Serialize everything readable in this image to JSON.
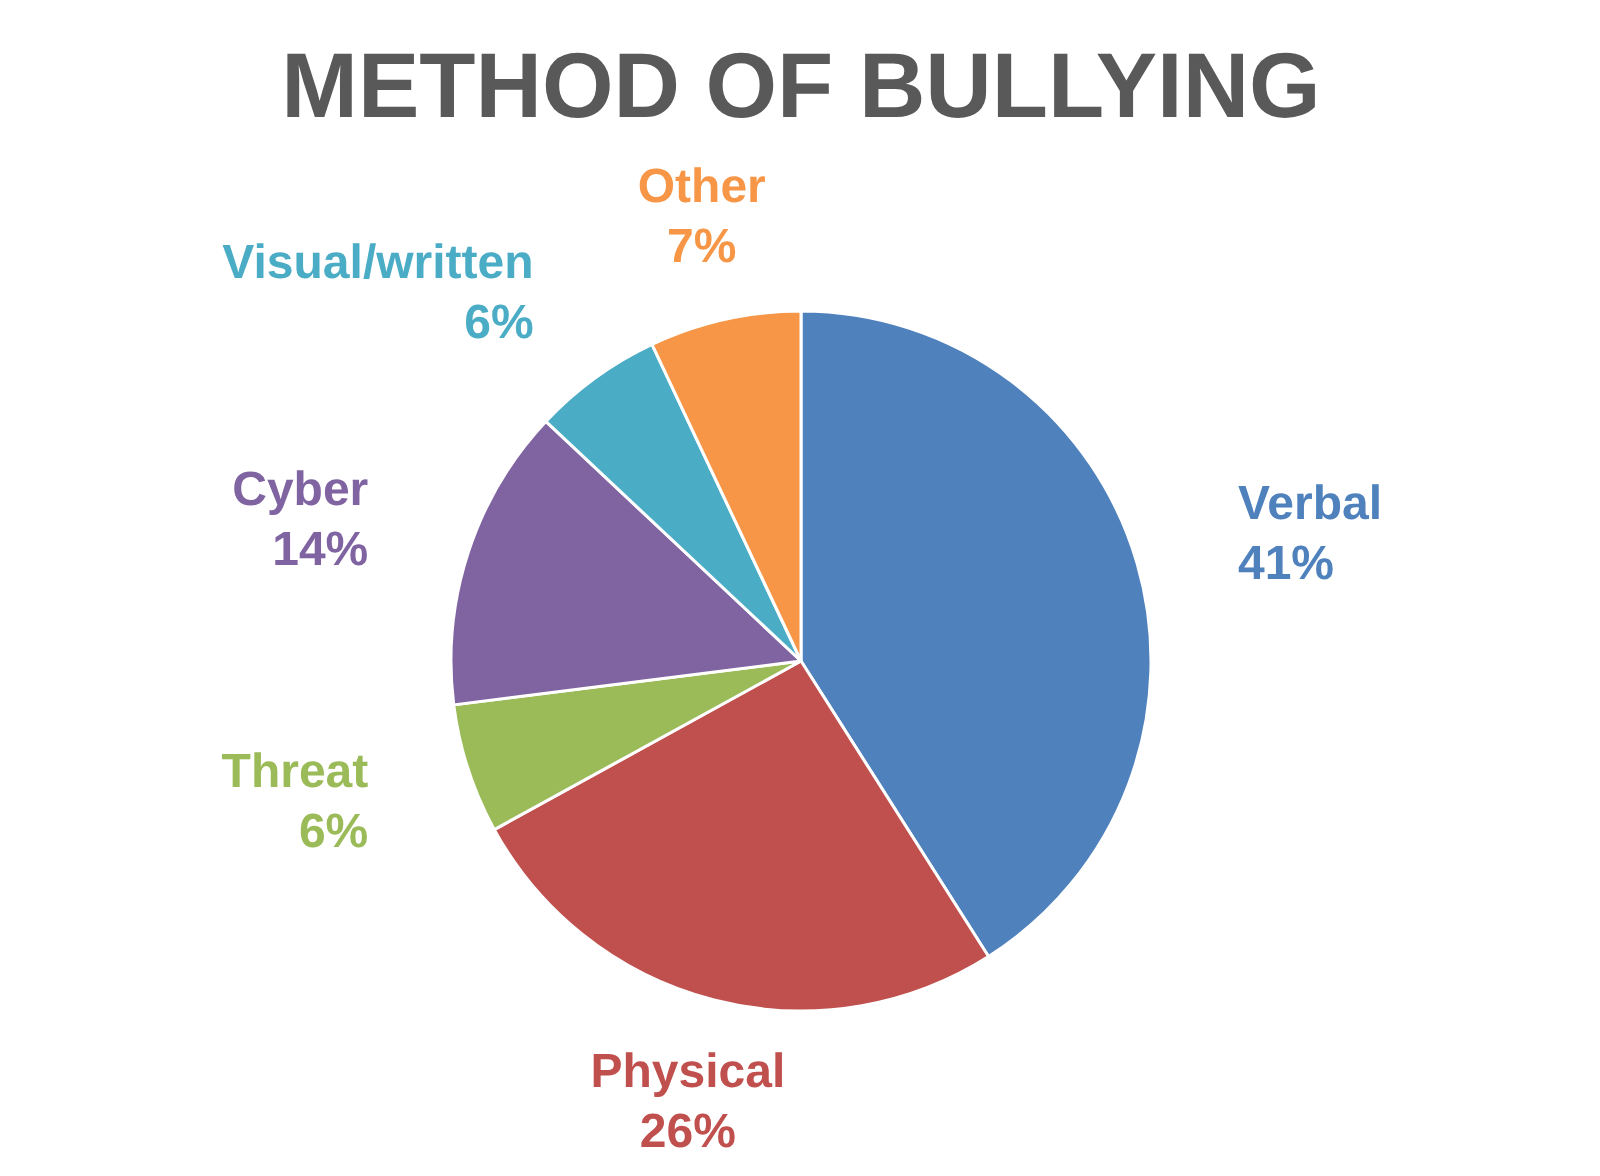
{
  "chart_data": {
    "type": "pie",
    "title": "METHOD OF BULLYING",
    "categories": [
      "Verbal",
      "Physical",
      "Threat",
      "Cyber",
      "Visual/written",
      "Other"
    ],
    "values": [
      41,
      26,
      6,
      14,
      6,
      7
    ],
    "colors": [
      "#4f81bd",
      "#c0504d",
      "#9bbb59",
      "#8064a2",
      "#4bacc6",
      "#f79646"
    ],
    "value_labels": [
      "41%",
      "26%",
      "6%",
      "14%",
      "6%",
      "7%"
    ]
  }
}
